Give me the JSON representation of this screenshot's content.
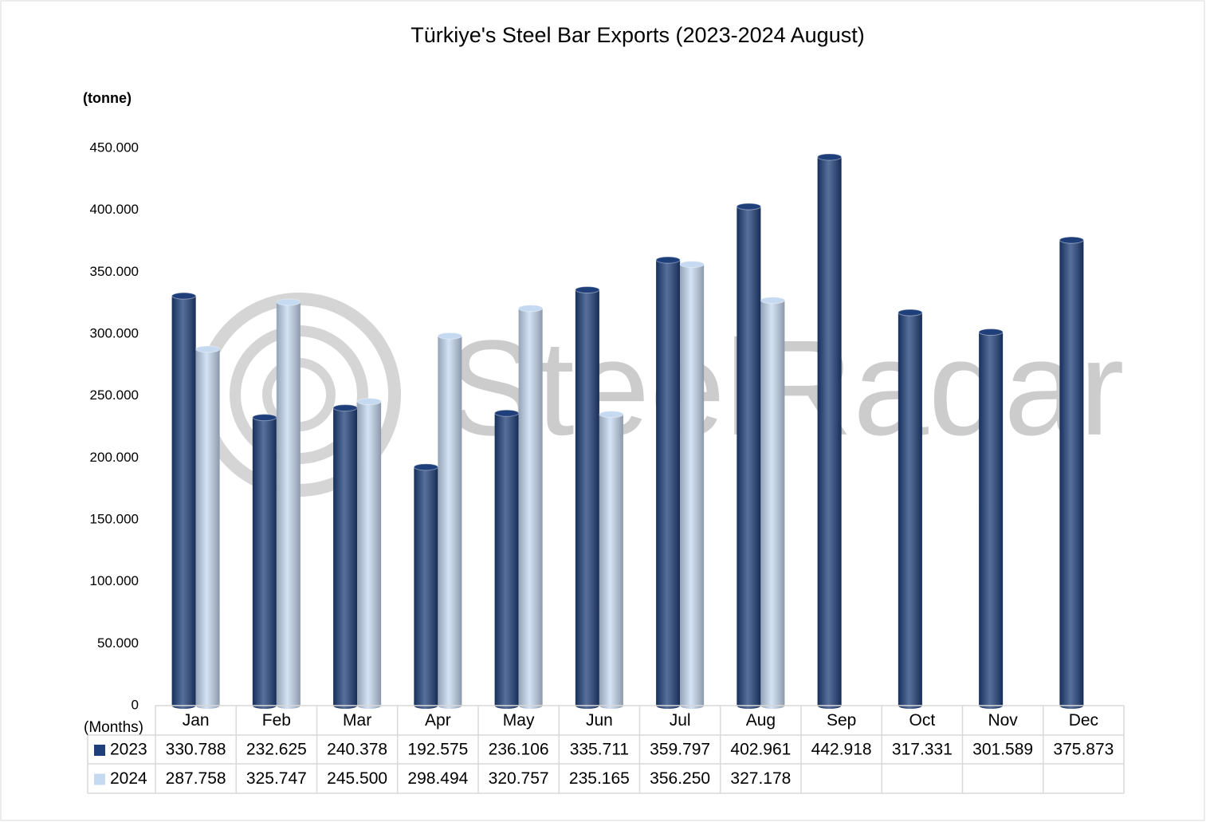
{
  "chart_data": {
    "type": "bar",
    "title": "Türkiye's Steel Bar Exports (2023-2024 August)",
    "y_label": "(tonne)",
    "x_label": "(Months)",
    "watermark": "SteelRadar",
    "categories": [
      "Jan",
      "Feb",
      "Mar",
      "Apr",
      "May",
      "Jun",
      "Jul",
      "Aug",
      "Sep",
      "Oct",
      "Nov",
      "Dec"
    ],
    "series": [
      {
        "name": "2023",
        "color": "#1f3f7a",
        "values": [
          330788,
          232625,
          240378,
          192575,
          236106,
          335711,
          359797,
          402961,
          442918,
          317331,
          301589,
          375873
        ],
        "value_labels": [
          "330.788",
          "232.625",
          "240.378",
          "192.575",
          "236.106",
          "335.711",
          "359.797",
          "402.961",
          "442.918",
          "317.331",
          "301.589",
          "375.873"
        ]
      },
      {
        "name": "2024",
        "color": "#c5d9f1",
        "values": [
          287758,
          325747,
          245500,
          298494,
          320757,
          235165,
          356250,
          327178,
          null,
          null,
          null,
          null
        ],
        "value_labels": [
          "287.758",
          "325.747",
          "245.500",
          "298.494",
          "320.757",
          "235.165",
          "356.250",
          "327.178",
          null,
          null,
          null,
          null
        ]
      }
    ],
    "ylim": [
      0,
      450000
    ],
    "yticks": [
      0,
      {
        "value": 50000,
        "label": "50.000"
      },
      {
        "value": 100000,
        "label": "100.000"
      },
      {
        "value": 150000,
        "label": "150.000"
      },
      {
        "value": 200000,
        "label": "200.000"
      },
      {
        "value": 250000,
        "label": "250.000"
      },
      {
        "value": 300000,
        "label": "300.000"
      },
      {
        "value": 350000,
        "label": "350.000"
      },
      {
        "value": 400000,
        "label": "400.000"
      },
      {
        "value": 450000,
        "label": "450.000"
      }
    ],
    "grid": false,
    "legend": "table"
  }
}
